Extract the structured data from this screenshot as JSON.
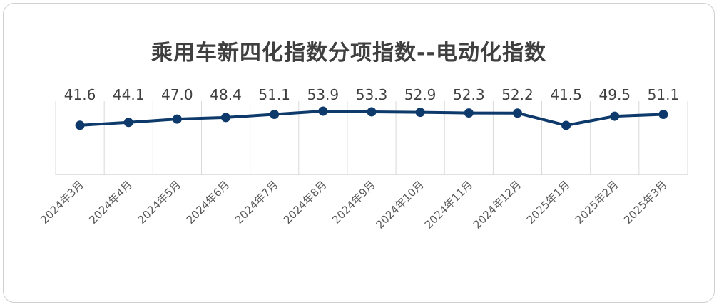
{
  "chart_data": {
    "type": "line",
    "title": "乘用车新四化指数分项指数--电动化指数",
    "categories": [
      "2024年3月",
      "2024年4月",
      "2024年5月",
      "2024年6月",
      "2024年7月",
      "2024年8月",
      "2024年9月",
      "2024年10月",
      "2024年11月",
      "2024年12月",
      "2025年1月",
      "2025年2月",
      "2025年3月"
    ],
    "series": [
      {
        "values": [
          41.6,
          44.1,
          47.0,
          48.4,
          51.1,
          53.9,
          53.3,
          52.9,
          52.3,
          52.2,
          41.5,
          49.5,
          51.1
        ]
      }
    ],
    "value_labels": [
      "41.6",
      "44.1",
      "47.0",
      "48.4",
      "51.1",
      "53.9",
      "53.3",
      "52.9",
      "52.3",
      "52.2",
      "41.5",
      "49.5",
      "51.1"
    ],
    "xlabel": "",
    "ylabel": "",
    "ylim": [
      0,
      60
    ],
    "grid": "vertical",
    "legend": "none",
    "colors": {
      "line": "#0d3a6b",
      "grid": "#d9d9d9",
      "text": "#404040"
    }
  }
}
